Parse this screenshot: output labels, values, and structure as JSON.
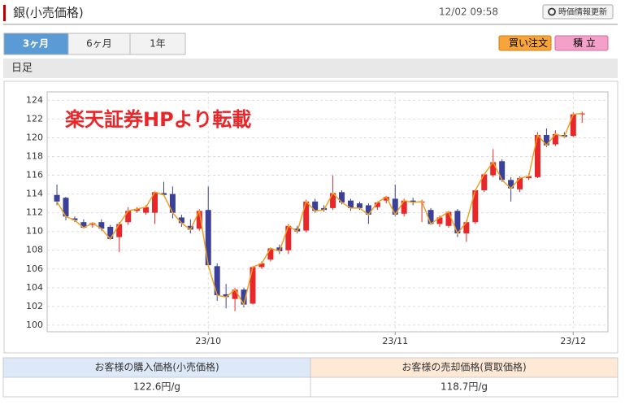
{
  "header": {
    "title": "銀(小売価格)",
    "timestamp": "12/02 09:58",
    "refresh_button": "時価情報更新"
  },
  "tabs": [
    "3ヶ月",
    "6ヶ月",
    "1年"
  ],
  "buttons": {
    "buy": "買い注文",
    "tsumitate": "積 立"
  },
  "section_label": "日足",
  "chart_data": {
    "type": "candlestick",
    "annotation": "楽天証券HPより転載",
    "categories": [
      null,
      null,
      null,
      null,
      null,
      null,
      null,
      null,
      null,
      null,
      null,
      null,
      null,
      null,
      null,
      null,
      null,
      null,
      null,
      null,
      null,
      null,
      null,
      null,
      null,
      null,
      null,
      null,
      null,
      null,
      null,
      null,
      null,
      null,
      null,
      null,
      null,
      null,
      null,
      null,
      null,
      null,
      null,
      null,
      null,
      null,
      null,
      null,
      null,
      null,
      null,
      null,
      null,
      null,
      null,
      null,
      null,
      null,
      null,
      null
    ],
    "open": [
      113.9,
      113.6,
      111.4,
      111,
      110.7,
      111,
      110.5,
      109.4,
      111,
      112.2,
      112,
      112,
      114.1,
      114,
      111.5,
      110.6,
      110.3,
      112.3,
      106.3,
      103.3,
      102.8,
      103.8,
      102.3,
      106.2,
      107,
      108.3,
      108,
      110.3,
      110.1,
      113.2,
      112.5,
      112.5,
      114.2,
      113.3,
      113,
      112.8,
      112.6,
      113.3,
      113.5,
      111.9,
      113.3,
      113.1,
      112.3,
      110.8,
      110.6,
      112.2,
      109.8,
      111,
      114.4,
      116,
      117.5,
      115.5,
      114.5,
      115.7,
      115.8,
      120.3,
      119.3,
      120.3,
      120.2,
      122.5
    ],
    "high": [
      115,
      113.7,
      111.6,
      111.3,
      111,
      111.3,
      110.7,
      111,
      112.6,
      112.6,
      112.8,
      114.3,
      115.3,
      114.8,
      111.8,
      111.3,
      112.4,
      114.8,
      106.6,
      104.4,
      104,
      104,
      106.3,
      106.8,
      108.3,
      108.6,
      110.8,
      110.6,
      113.4,
      113.5,
      112.8,
      116,
      114.4,
      113.5,
      113.2,
      113,
      113.2,
      113.8,
      115,
      113.5,
      113.6,
      113.4,
      112.5,
      111.7,
      112.2,
      112.4,
      111.2,
      114.5,
      116.2,
      118.8,
      117.7,
      115.8,
      115.9,
      116.2,
      120.6,
      121,
      120.8,
      120.6,
      122.7,
      122.8
    ],
    "low": [
      112.8,
      111.2,
      111,
      110.3,
      110.4,
      110.1,
      109.1,
      107.8,
      110.7,
      112,
      111.8,
      110.8,
      113.8,
      111.4,
      110.5,
      109.8,
      110.1,
      106.3,
      102.6,
      101.8,
      101.5,
      101.9,
      102.2,
      106,
      106.8,
      107.6,
      107.6,
      109.8,
      109.9,
      112,
      112.1,
      112.3,
      112.9,
      112.2,
      112.3,
      110.8,
      112.3,
      113,
      111.6,
      111.6,
      112.8,
      111,
      110.7,
      110.5,
      110.4,
      109.4,
      108.9,
      110.8,
      114.2,
      115.8,
      115.3,
      113.2,
      114.2,
      115.5,
      115.7,
      119,
      119.1,
      120,
      120.1,
      121.6
    ],
    "close": [
      113.2,
      111.6,
      111.2,
      110.4,
      110.9,
      110.3,
      109.2,
      110.8,
      112.2,
      112.4,
      112.6,
      114.2,
      113.9,
      112,
      110.9,
      110.2,
      112.2,
      106.4,
      103.2,
      103,
      103.8,
      102.2,
      106.2,
      106.6,
      108.2,
      107.9,
      110.6,
      110,
      113.2,
      112.2,
      112.3,
      114.1,
      113.1,
      112.5,
      112.5,
      111.8,
      113.1,
      113.7,
      111.8,
      113.3,
      113.1,
      113.2,
      110.8,
      111.5,
      112.1,
      109.8,
      111,
      114.4,
      116.1,
      117.4,
      115.5,
      114.6,
      115.7,
      115.9,
      120.3,
      119.2,
      120.4,
      120.1,
      122.5,
      122.6
    ],
    "up_color": "#e8272a",
    "down_color": "#3b4199",
    "line_color": "#f0a020",
    "xlim": [
      -1.1,
      61.9
    ],
    "xticks": [
      {
        "value": 17,
        "label": "23/10"
      },
      {
        "value": 38,
        "label": "23/11"
      },
      {
        "value": 58,
        "label": "23/12"
      }
    ],
    "ylim": [
      99.3,
      124.9
    ],
    "yticks": [
      100,
      102,
      104,
      106,
      108,
      110,
      112,
      114,
      116,
      118,
      120,
      122,
      124
    ],
    "grid": true
  },
  "price_table": {
    "headers": [
      "お客様の購入価格(小売価格)",
      "お客様の売却価格(買取価格)"
    ],
    "values": [
      "122.6円/g",
      "118.7円/g"
    ]
  }
}
